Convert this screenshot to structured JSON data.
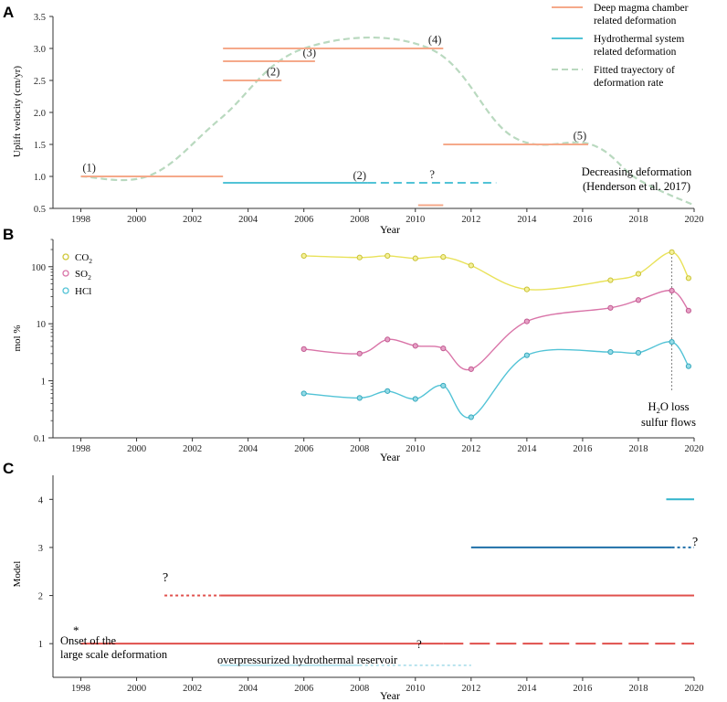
{
  "colors": {
    "magma": "#f5a98a",
    "hydro": "#52c3d6",
    "fitted": "#b9d9bf",
    "co2": "#eee85a",
    "so2": "#d974a8",
    "hcl": "#52c3d6",
    "model_red": "#e0504c",
    "model_blue": "#1f6fa8",
    "model_cyan": "#30b4cc",
    "model_light": "#8fd3e3",
    "axis": "#333333"
  },
  "chart_data": [
    {
      "panel": "A",
      "type": "line",
      "ylabel": "Uplift velocity (cm/yr)",
      "xlabel": "Year",
      "xlim": [
        1997,
        2020
      ],
      "ylim": [
        0.5,
        3.5
      ],
      "xticks": [
        1998,
        2000,
        2002,
        2004,
        2006,
        2008,
        2010,
        2012,
        2014,
        2016,
        2018,
        2020
      ],
      "yticks": [
        "0.5",
        "1.0",
        "1.5",
        "2.0",
        "2.5",
        "3.0",
        "3.5"
      ],
      "legend": [
        {
          "label": "Deep magma chamber related deformation",
          "lines": [
            "Deep magma chamber",
            "related deformation"
          ],
          "style": "magma"
        },
        {
          "label": "Hydrothermal system related deformation",
          "lines": [
            "Hydrothermal system",
            "related deformation"
          ],
          "style": "hydro"
        },
        {
          "label": "Fitted trayectory of deformation rate",
          "lines": [
            "Fitted trayectory of",
            "deformation rate"
          ],
          "style": "fitted"
        }
      ],
      "magma_segments": [
        {
          "x0": 1998,
          "x1": 2003.1,
          "y": 1.0,
          "label": "(1)",
          "label_at": [
            1998.3,
            1.08
          ]
        },
        {
          "x0": 2003.1,
          "x1": 2005.2,
          "y": 2.5,
          "label": "(2)",
          "label_at": [
            2004.9,
            2.58
          ]
        },
        {
          "x0": 2003.1,
          "x1": 2006.4,
          "y": 2.8,
          "label": "(3)",
          "label_at": [
            2006.2,
            2.88
          ]
        },
        {
          "x0": 2003.1,
          "x1": 2011.0,
          "y": 3.0,
          "label": "(4)",
          "label_at": [
            2010.7,
            3.08
          ]
        },
        {
          "x0": 2011.0,
          "x1": 2016.2,
          "y": 1.5,
          "label": "(5)",
          "label_at": [
            2015.9,
            1.58
          ]
        },
        {
          "x0": 2010.1,
          "x1": 2011.0,
          "y": 0.55,
          "label": "",
          "label_at": [
            0,
            0
          ]
        }
      ],
      "hydro_segments": [
        {
          "x0": 2003.1,
          "x1": 2008.3,
          "y": 0.9,
          "dash": false
        },
        {
          "x0": 2008.3,
          "x1": 2012.9,
          "y": 0.9,
          "dash": true
        }
      ],
      "hydro_labels": [
        "(2)",
        "?"
      ],
      "fitted": {
        "x": [
          1998,
          2000.5,
          2003,
          2006,
          2010.5,
          2013.5,
          2016.3,
          2018,
          2020
        ],
        "y": [
          1.0,
          1.02,
          1.9,
          3.0,
          3.0,
          1.62,
          1.5,
          0.95,
          0.55
        ]
      },
      "annotation": [
        "Decreasing deformation",
        "(Henderson et al. 2017)"
      ]
    },
    {
      "panel": "B",
      "type": "line",
      "yscale": "log",
      "ylabel": "mol %",
      "xlabel": "Year",
      "xlim": [
        1997,
        2020
      ],
      "ylim": [
        0.1,
        300
      ],
      "yticks": [
        "0.1",
        "1",
        "10",
        "100"
      ],
      "xticks": [
        1998,
        2000,
        2002,
        2004,
        2006,
        2008,
        2010,
        2012,
        2014,
        2016,
        2018,
        2020
      ],
      "series": [
        {
          "name": "CO2",
          "label_main": "CO",
          "label_sub": "2",
          "color": "co2",
          "x": [
            2006,
            2008,
            2009,
            2010,
            2011,
            2012,
            2014,
            2017,
            2018,
            2019.2,
            2019.8
          ],
          "y": [
            155,
            145,
            155,
            140,
            148,
            105,
            40,
            58,
            75,
            180,
            63
          ]
        },
        {
          "name": "SO2",
          "label_main": "SO",
          "label_sub": "2",
          "color": "so2",
          "x": [
            2006,
            2008,
            2009,
            2010,
            2011,
            2012,
            2014,
            2017,
            2018,
            2019.2,
            2019.8
          ],
          "y": [
            3.6,
            3.0,
            5.3,
            4.1,
            3.7,
            1.6,
            11,
            19,
            26,
            38,
            17
          ]
        },
        {
          "name": "HCl",
          "label_main": "HCl",
          "label_sub": "",
          "color": "hcl",
          "x": [
            2006,
            2008,
            2009,
            2010,
            2011,
            2012,
            2014,
            2017,
            2018,
            2019.2,
            2019.8
          ],
          "y": [
            0.6,
            0.5,
            0.66,
            0.48,
            0.82,
            0.23,
            2.8,
            3.2,
            3.1,
            4.8,
            1.8
          ]
        }
      ],
      "vline_x": 2019.2,
      "annotation": {
        "h2o_main": "H",
        "h2o_sub": "2",
        "h2o_rest": "O loss",
        "line2": "sulfur flows"
      }
    },
    {
      "panel": "C",
      "type": "line",
      "ylabel": "Model",
      "xlabel": "Year",
      "xlim": [
        1997,
        2020
      ],
      "ylim": [
        0.3,
        4.5
      ],
      "yticks": [
        "1",
        "2",
        "3",
        "4"
      ],
      "xticks": [
        1998,
        2000,
        2002,
        2004,
        2006,
        2008,
        2010,
        2012,
        2014,
        2016,
        2018,
        2020
      ],
      "segments": [
        {
          "model": 1,
          "x0": 1998,
          "x1": 2011,
          "style": "solid",
          "color": "model_red"
        },
        {
          "model": 1,
          "x0": 2011,
          "x1": 2020,
          "style": "longdash",
          "color": "model_red"
        },
        {
          "model": 2,
          "x0": 2001,
          "x1": 2003,
          "style": "dotted",
          "color": "model_red"
        },
        {
          "model": 2,
          "x0": 2003,
          "x1": 2020,
          "style": "solid",
          "color": "model_red"
        },
        {
          "model": 3,
          "x0": 2012,
          "x1": 2019.2,
          "style": "solid",
          "color": "model_blue"
        },
        {
          "model": 3,
          "x0": 2019.2,
          "x1": 2020,
          "style": "dotted",
          "color": "model_blue"
        },
        {
          "model": 4,
          "x0": 2019,
          "x1": 2020,
          "style": "solid",
          "color": "model_cyan"
        },
        {
          "model": 0.55,
          "x0": 2003,
          "x1": 2008,
          "style": "solid",
          "color": "model_light"
        },
        {
          "model": 0.55,
          "x0": 2008,
          "x1": 2012,
          "style": "dotted",
          "color": "model_light"
        }
      ],
      "labels": {
        "onset_star": "*",
        "onset_line1": "Onset of the",
        "onset_line2": "large scale deformation",
        "q_model2": "?",
        "q_model3": "?",
        "q_reservoir": "?",
        "reservoir": "overpressurized hydrothermal reservoir"
      }
    }
  ],
  "panel_letters": [
    "A",
    "B",
    "C"
  ]
}
